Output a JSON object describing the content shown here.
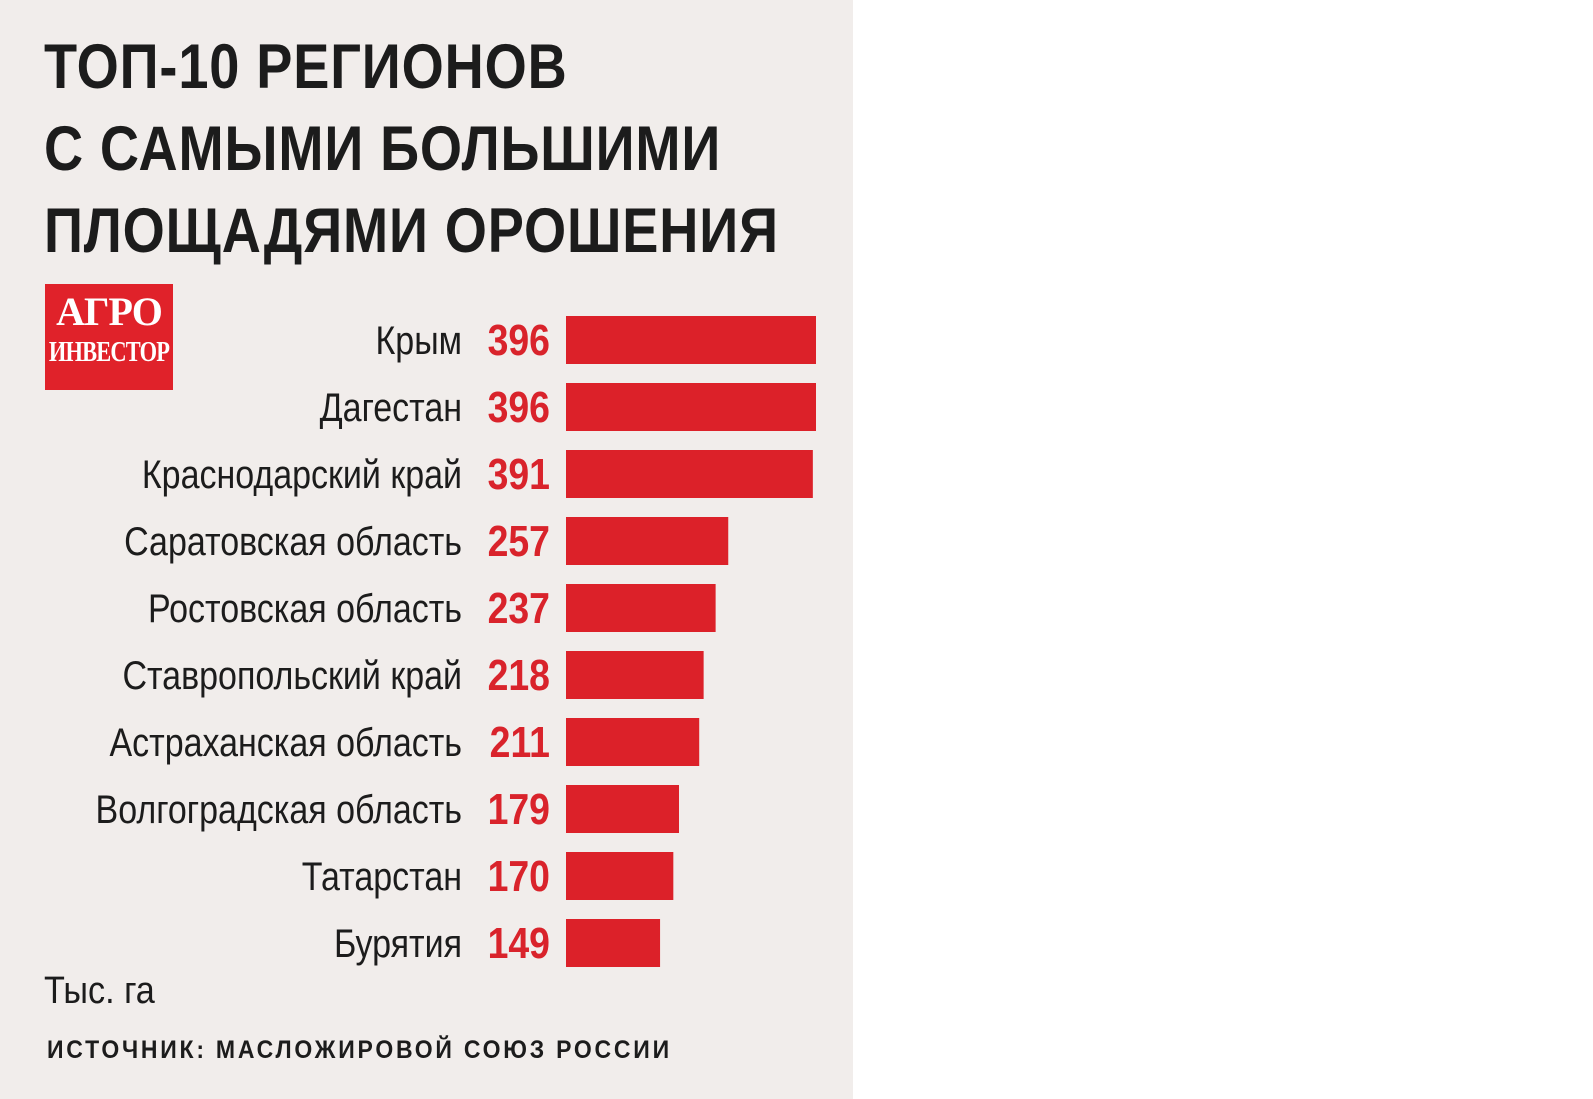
{
  "title_lines": [
    "ТОП-10 РЕГИОНОВ",
    "С САМЫМИ БОЛЬШИМИ",
    "ПЛОЩАДЯМИ ОРОШЕНИЯ"
  ],
  "logo": {
    "line1": "АГРО",
    "line2": "ИНВЕСТОР"
  },
  "unit": "Тыс. га",
  "source": "ИСТОЧНИК: МАСЛОЖИРОВОЙ СОЮЗ РОССИИ",
  "colors": {
    "bar": "#dc2129",
    "value": "#d9232b",
    "background": "#f1edeb"
  },
  "chart_data": {
    "type": "bar",
    "orientation": "horizontal",
    "title": "ТОП-10 РЕГИОНОВ С САМЫМИ БОЛЬШИМИ ПЛОЩАДЯМИ ОРОШЕНИЯ",
    "unit": "Тыс. га",
    "categories": [
      "Крым",
      "Дагестан",
      "Краснодарский край",
      "Саратовская область",
      "Ростовская область",
      "Ставропольский край",
      "Астраханская область",
      "Волгоградская область",
      "Татарстан",
      "Бурятия"
    ],
    "values": [
      396,
      396,
      391,
      257,
      237,
      218,
      211,
      179,
      170,
      149
    ],
    "xlim": [
      0,
      396
    ],
    "grid": false,
    "legend": false
  }
}
